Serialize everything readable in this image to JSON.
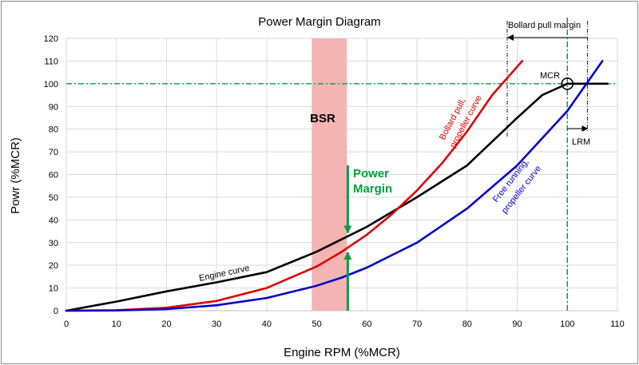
{
  "chart_data": {
    "type": "line",
    "title": "Power Margin Diagram",
    "xlabel": "Engine RPM (%MCR)",
    "ylabel": "Powr (%MCR)",
    "xlim": [
      0,
      110
    ],
    "ylim": [
      0,
      120
    ],
    "xticks": [
      0,
      10,
      20,
      30,
      40,
      50,
      60,
      70,
      80,
      90,
      100,
      110
    ],
    "yticks": [
      0,
      10,
      20,
      30,
      40,
      50,
      60,
      70,
      80,
      90,
      100,
      110,
      120
    ],
    "grid": true,
    "series": [
      {
        "name": "Engine curve",
        "color": "#000000",
        "x": [
          0,
          10,
          20,
          30,
          40,
          50,
          60,
          70,
          80,
          90,
          95,
          100,
          108
        ],
        "y": [
          0,
          4,
          8.5,
          12.5,
          17,
          26,
          37,
          50,
          64,
          85,
          95,
          100,
          100
        ]
      },
      {
        "name": "Bollard pull, propeller curve",
        "color": "#e00000",
        "x": [
          0,
          10,
          20,
          30,
          40,
          50,
          55,
          60,
          65,
          70,
          75,
          80,
          85,
          91
        ],
        "y": [
          0,
          0.2,
          1.3,
          4.3,
          10,
          19.5,
          26,
          33.5,
          42.5,
          53,
          65,
          79,
          95,
          110
        ]
      },
      {
        "name": "Free running, propeller curve",
        "color": "#0000cc",
        "x": [
          0,
          10,
          20,
          30,
          40,
          50,
          55,
          60,
          70,
          80,
          90,
          100,
          107
        ],
        "y": [
          0,
          0.1,
          0.7,
          2.4,
          5.6,
          11,
          14.6,
          19,
          30,
          45,
          64,
          88,
          110
        ]
      }
    ],
    "bsr_band": {
      "label": "BSR",
      "x_from": 49,
      "x_to": 56,
      "color": "#f4b4b4"
    },
    "reference_lines": {
      "mcr_power": {
        "axis": "y",
        "value": 100,
        "color": "#00a040"
      },
      "mcr_rpm": {
        "axis": "x",
        "value": 100,
        "color": "#00a040"
      },
      "bollard_pull_limit": {
        "axis": "x",
        "value": 88
      },
      "lrm_limit": {
        "axis": "x",
        "value": 104
      }
    },
    "power_margin": {
      "x": 56.5,
      "from": 26,
      "to": 34
    },
    "mcr_point": {
      "x": 100,
      "y": 100
    },
    "annotations": {
      "bsr": "BSR",
      "power_margin_line1": "Power",
      "power_margin_line2": "Margin",
      "bollard_pull_margin": "Bollard pull margin",
      "mcr": "MCR",
      "lrm": "LRM",
      "engine_curve": "Engine curve",
      "bollard_label_line1": "Bollard pull,",
      "bollard_label_line2": "propeller curve",
      "free_label_line1": "Free running,",
      "free_label_line2": "propeller curve"
    }
  }
}
